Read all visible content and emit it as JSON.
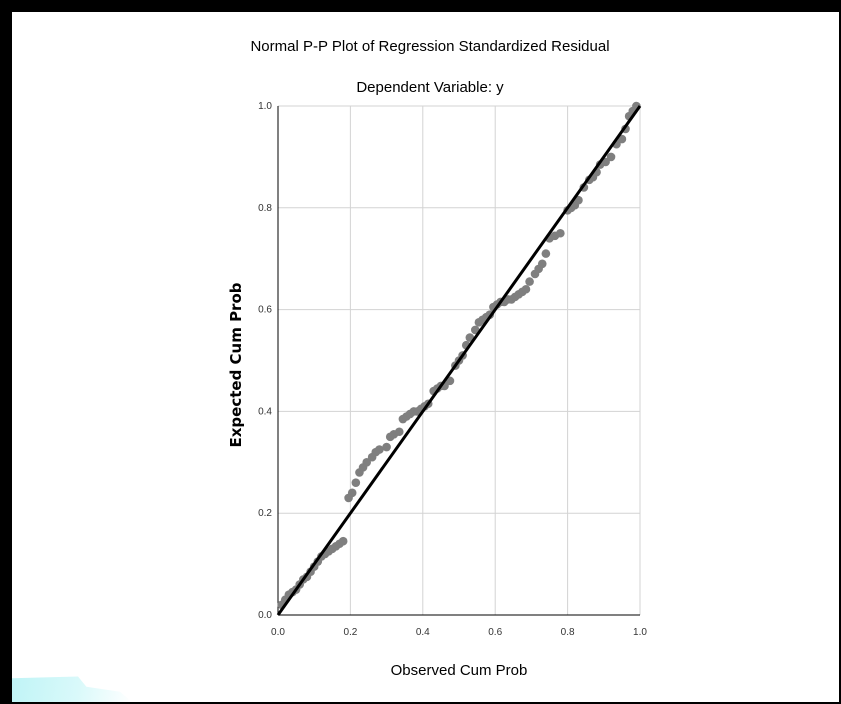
{
  "chart_data": {
    "type": "scatter",
    "title": "Normal P-P Plot of Regression Standardized Residual",
    "subtitle": "Dependent Variable: y",
    "xlabel": "Observed Cum Prob",
    "ylabel": "Expected Cum Prob",
    "xlim": [
      0.0,
      1.0
    ],
    "ylim": [
      0.0,
      1.0
    ],
    "x_ticks": [
      "0.0",
      "0.2",
      "0.4",
      "0.6",
      "0.8",
      "1.0"
    ],
    "y_ticks": [
      "0.0",
      "0.2",
      "0.4",
      "0.6",
      "0.8",
      "1.0"
    ],
    "grid": true,
    "reference_line": {
      "x": [
        0.0,
        1.0
      ],
      "y": [
        0.0,
        1.0
      ]
    },
    "points": [
      {
        "x": 0.01,
        "y": 0.02
      },
      {
        "x": 0.02,
        "y": 0.03
      },
      {
        "x": 0.03,
        "y": 0.04
      },
      {
        "x": 0.04,
        "y": 0.045
      },
      {
        "x": 0.05,
        "y": 0.05
      },
      {
        "x": 0.06,
        "y": 0.06
      },
      {
        "x": 0.07,
        "y": 0.07
      },
      {
        "x": 0.08,
        "y": 0.075
      },
      {
        "x": 0.09,
        "y": 0.085
      },
      {
        "x": 0.1,
        "y": 0.095
      },
      {
        "x": 0.11,
        "y": 0.105
      },
      {
        "x": 0.12,
        "y": 0.115
      },
      {
        "x": 0.13,
        "y": 0.12
      },
      {
        "x": 0.14,
        "y": 0.125
      },
      {
        "x": 0.15,
        "y": 0.13
      },
      {
        "x": 0.16,
        "y": 0.135
      },
      {
        "x": 0.17,
        "y": 0.14
      },
      {
        "x": 0.18,
        "y": 0.145
      },
      {
        "x": 0.195,
        "y": 0.23
      },
      {
        "x": 0.205,
        "y": 0.24
      },
      {
        "x": 0.215,
        "y": 0.26
      },
      {
        "x": 0.225,
        "y": 0.28
      },
      {
        "x": 0.235,
        "y": 0.29
      },
      {
        "x": 0.245,
        "y": 0.3
      },
      {
        "x": 0.26,
        "y": 0.31
      },
      {
        "x": 0.27,
        "y": 0.32
      },
      {
        "x": 0.28,
        "y": 0.325
      },
      {
        "x": 0.3,
        "y": 0.33
      },
      {
        "x": 0.31,
        "y": 0.35
      },
      {
        "x": 0.32,
        "y": 0.355
      },
      {
        "x": 0.335,
        "y": 0.36
      },
      {
        "x": 0.345,
        "y": 0.385
      },
      {
        "x": 0.355,
        "y": 0.39
      },
      {
        "x": 0.365,
        "y": 0.395
      },
      {
        "x": 0.375,
        "y": 0.4
      },
      {
        "x": 0.385,
        "y": 0.4
      },
      {
        "x": 0.395,
        "y": 0.405
      },
      {
        "x": 0.405,
        "y": 0.41
      },
      {
        "x": 0.415,
        "y": 0.415
      },
      {
        "x": 0.43,
        "y": 0.44
      },
      {
        "x": 0.44,
        "y": 0.445
      },
      {
        "x": 0.45,
        "y": 0.45
      },
      {
        "x": 0.46,
        "y": 0.45
      },
      {
        "x": 0.475,
        "y": 0.46
      },
      {
        "x": 0.49,
        "y": 0.49
      },
      {
        "x": 0.5,
        "y": 0.5
      },
      {
        "x": 0.51,
        "y": 0.51
      },
      {
        "x": 0.52,
        "y": 0.53
      },
      {
        "x": 0.53,
        "y": 0.545
      },
      {
        "x": 0.545,
        "y": 0.56
      },
      {
        "x": 0.555,
        "y": 0.575
      },
      {
        "x": 0.565,
        "y": 0.58
      },
      {
        "x": 0.575,
        "y": 0.585
      },
      {
        "x": 0.585,
        "y": 0.59
      },
      {
        "x": 0.595,
        "y": 0.605
      },
      {
        "x": 0.605,
        "y": 0.61
      },
      {
        "x": 0.615,
        "y": 0.615
      },
      {
        "x": 0.625,
        "y": 0.615
      },
      {
        "x": 0.635,
        "y": 0.62
      },
      {
        "x": 0.645,
        "y": 0.62
      },
      {
        "x": 0.655,
        "y": 0.625
      },
      {
        "x": 0.665,
        "y": 0.63
      },
      {
        "x": 0.675,
        "y": 0.635
      },
      {
        "x": 0.685,
        "y": 0.64
      },
      {
        "x": 0.695,
        "y": 0.655
      },
      {
        "x": 0.71,
        "y": 0.67
      },
      {
        "x": 0.72,
        "y": 0.68
      },
      {
        "x": 0.73,
        "y": 0.69
      },
      {
        "x": 0.74,
        "y": 0.71
      },
      {
        "x": 0.75,
        "y": 0.74
      },
      {
        "x": 0.765,
        "y": 0.745
      },
      {
        "x": 0.78,
        "y": 0.75
      },
      {
        "x": 0.8,
        "y": 0.795
      },
      {
        "x": 0.81,
        "y": 0.8
      },
      {
        "x": 0.82,
        "y": 0.805
      },
      {
        "x": 0.83,
        "y": 0.815
      },
      {
        "x": 0.845,
        "y": 0.84
      },
      {
        "x": 0.86,
        "y": 0.855
      },
      {
        "x": 0.87,
        "y": 0.86
      },
      {
        "x": 0.88,
        "y": 0.87
      },
      {
        "x": 0.89,
        "y": 0.885
      },
      {
        "x": 0.905,
        "y": 0.89
      },
      {
        "x": 0.92,
        "y": 0.9
      },
      {
        "x": 0.935,
        "y": 0.925
      },
      {
        "x": 0.95,
        "y": 0.935
      },
      {
        "x": 0.96,
        "y": 0.955
      },
      {
        "x": 0.97,
        "y": 0.98
      },
      {
        "x": 0.98,
        "y": 0.99
      },
      {
        "x": 0.99,
        "y": 1.0
      }
    ]
  },
  "colors": {
    "background": "#ffffff",
    "frame": "#000000",
    "points": "#7f7f7f",
    "reference_line": "#000000",
    "grid": "#d3d3d3"
  }
}
